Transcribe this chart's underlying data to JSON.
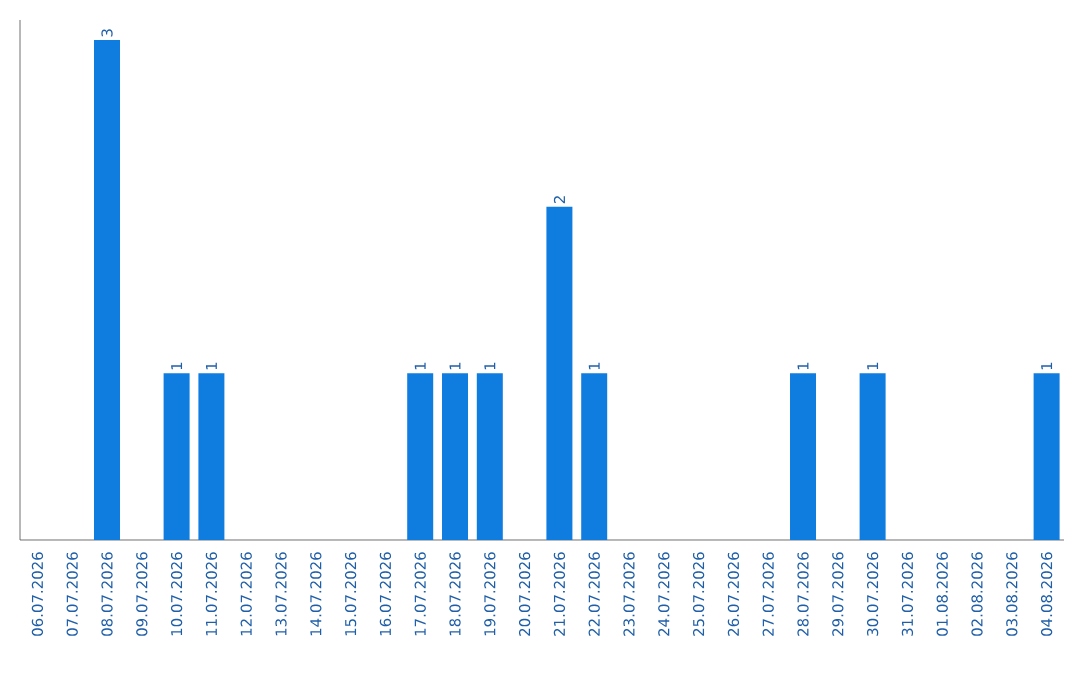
{
  "chart_data": {
    "type": "bar",
    "categories": [
      "06.07.2026",
      "07.07.2026",
      "08.07.2026",
      "09.07.2026",
      "10.07.2026",
      "11.07.2026",
      "12.07.2026",
      "13.07.2026",
      "14.07.2026",
      "15.07.2026",
      "16.07.2026",
      "17.07.2026",
      "18.07.2026",
      "19.07.2026",
      "20.07.2026",
      "21.07.2026",
      "22.07.2026",
      "23.07.2026",
      "24.07.2026",
      "25.07.2026",
      "26.07.2026",
      "27.07.2026",
      "28.07.2026",
      "29.07.2026",
      "30.07.2026",
      "31.07.2026",
      "01.08.2026",
      "02.08.2026",
      "03.08.2026",
      "04.08.2026"
    ],
    "values": [
      0,
      0,
      3,
      0,
      1,
      1,
      0,
      0,
      0,
      0,
      0,
      1,
      1,
      1,
      0,
      2,
      1,
      0,
      0,
      0,
      0,
      0,
      1,
      0,
      1,
      0,
      0,
      0,
      0,
      1
    ],
    "value_labels": [
      null,
      null,
      "3",
      null,
      "1",
      "1",
      null,
      null,
      null,
      null,
      null,
      "1",
      "1",
      "1",
      null,
      "2",
      "1",
      null,
      null,
      null,
      null,
      null,
      "1",
      null,
      "1",
      null,
      null,
      null,
      null,
      "1"
    ],
    "color": "#0f7de0"
  }
}
